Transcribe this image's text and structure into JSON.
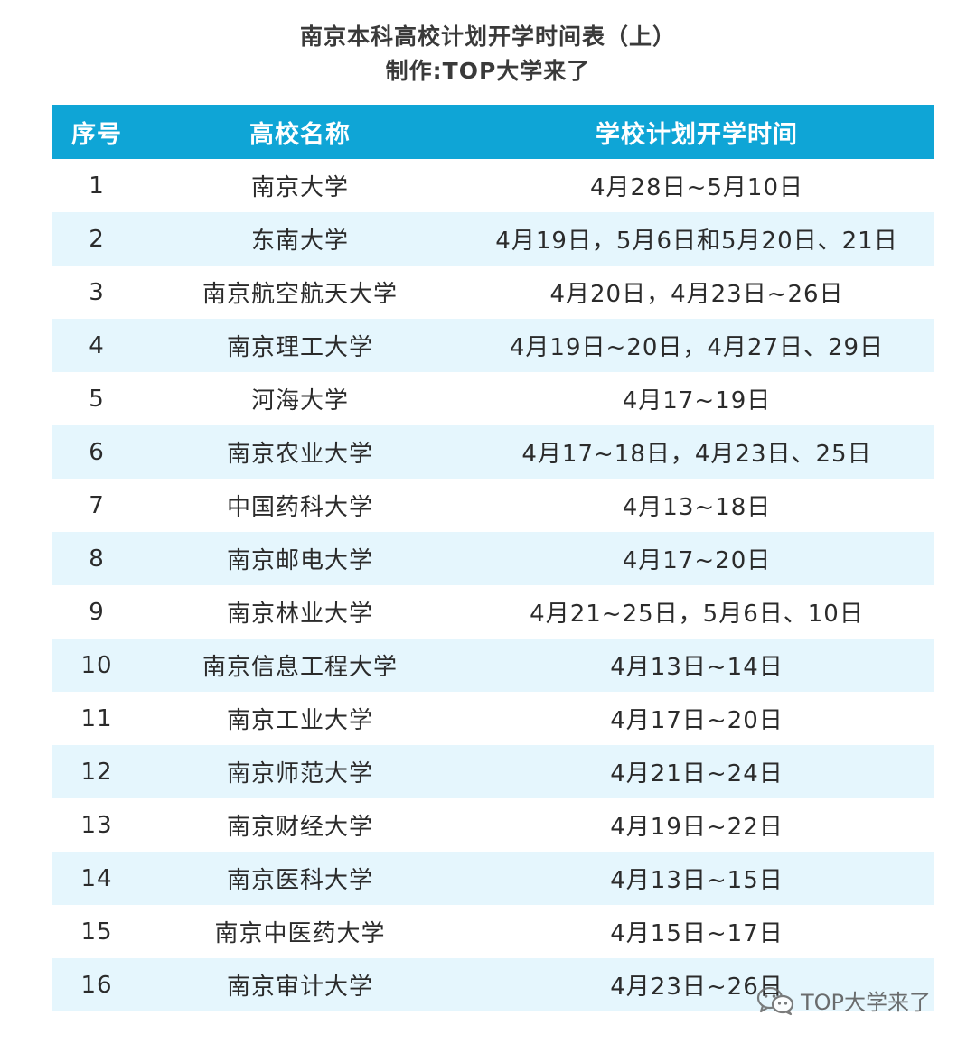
{
  "title": {
    "line1": "南京本科高校计划开学时间表（上）",
    "line2": "制作:TOP大学来了"
  },
  "table": {
    "headers": [
      "序号",
      "高校名称",
      "学校计划开学时间"
    ],
    "rows": [
      {
        "no": "1",
        "school": "南京大学",
        "date": "4月28日~5月10日"
      },
      {
        "no": "2",
        "school": "东南大学",
        "date": "4月19日，5月6日和5月20日、21日"
      },
      {
        "no": "3",
        "school": "南京航空航天大学",
        "date": "4月20日，4月23日~26日"
      },
      {
        "no": "4",
        "school": "南京理工大学",
        "date": "4月19日~20日，4月27日、29日"
      },
      {
        "no": "5",
        "school": "河海大学",
        "date": "4月17~19日"
      },
      {
        "no": "6",
        "school": "南京农业大学",
        "date": "4月17~18日，4月23日、25日"
      },
      {
        "no": "7",
        "school": "中国药科大学",
        "date": "4月13~18日"
      },
      {
        "no": "8",
        "school": "南京邮电大学",
        "date": "4月17~20日"
      },
      {
        "no": "9",
        "school": "南京林业大学",
        "date": "4月21~25日，5月6日、10日"
      },
      {
        "no": "10",
        "school": "南京信息工程大学",
        "date": "4月13日~14日"
      },
      {
        "no": "11",
        "school": "南京工业大学",
        "date": "4月17日~20日"
      },
      {
        "no": "12",
        "school": "南京师范大学",
        "date": "4月21日~24日"
      },
      {
        "no": "13",
        "school": "南京财经大学",
        "date": "4月19日~22日"
      },
      {
        "no": "14",
        "school": "南京医科大学",
        "date": "4月13日~15日"
      },
      {
        "no": "15",
        "school": "南京中医药大学",
        "date": "4月15日~17日"
      },
      {
        "no": "16",
        "school": "南京审计大学",
        "date": "4月23日~26日"
      }
    ]
  },
  "watermark": {
    "icon": "wechat-icon",
    "text": "TOP大学来了"
  },
  "colors": {
    "header_bg": "#0fa5d6",
    "stripe_bg": "#e5f6fd"
  }
}
